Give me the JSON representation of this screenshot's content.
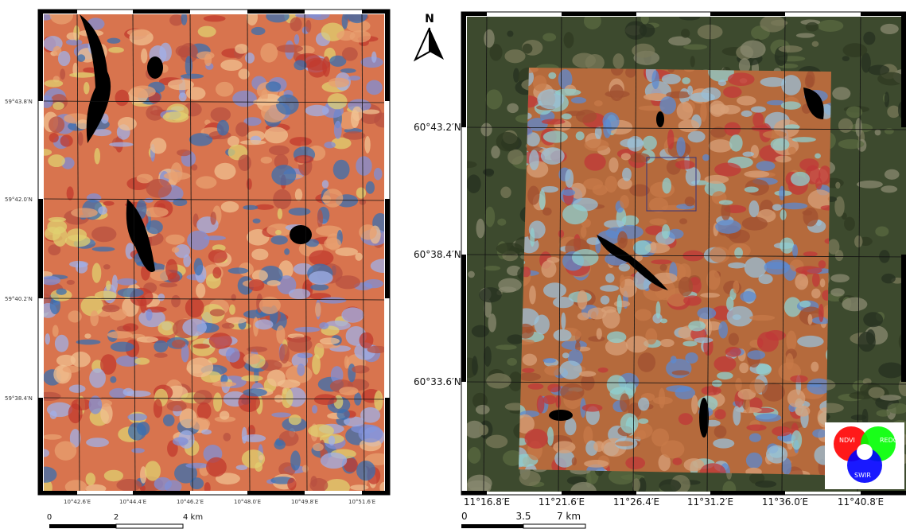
{
  "left_map": {
    "lat_labels": [
      "59°43.8′N",
      "59°42.0′N",
      "59°40.2′N",
      "59°38.4′N"
    ],
    "lon_labels": [
      "10°42.6′E",
      "10°44.4′E",
      "10°46.2′E",
      "10°48.0′E",
      "10°49.8′E",
      "10°51.6′E"
    ],
    "scale_labels": [
      "0",
      "2",
      "4 km"
    ]
  },
  "right_map": {
    "north": "N",
    "lat_labels": [
      "60°43.2′N",
      "60°38.4′N",
      "60°33.6′N"
    ],
    "lon_labels": [
      "11°16.8′E",
      "11°21.6′E",
      "11°26.4′E",
      "11°31.2′E",
      "11°36.0′E",
      "11°40.8′E"
    ],
    "scale_labels": [
      "0",
      "3.5",
      "7 km"
    ],
    "legend": [
      "NDVI",
      "REDG",
      "SWIR"
    ]
  }
}
